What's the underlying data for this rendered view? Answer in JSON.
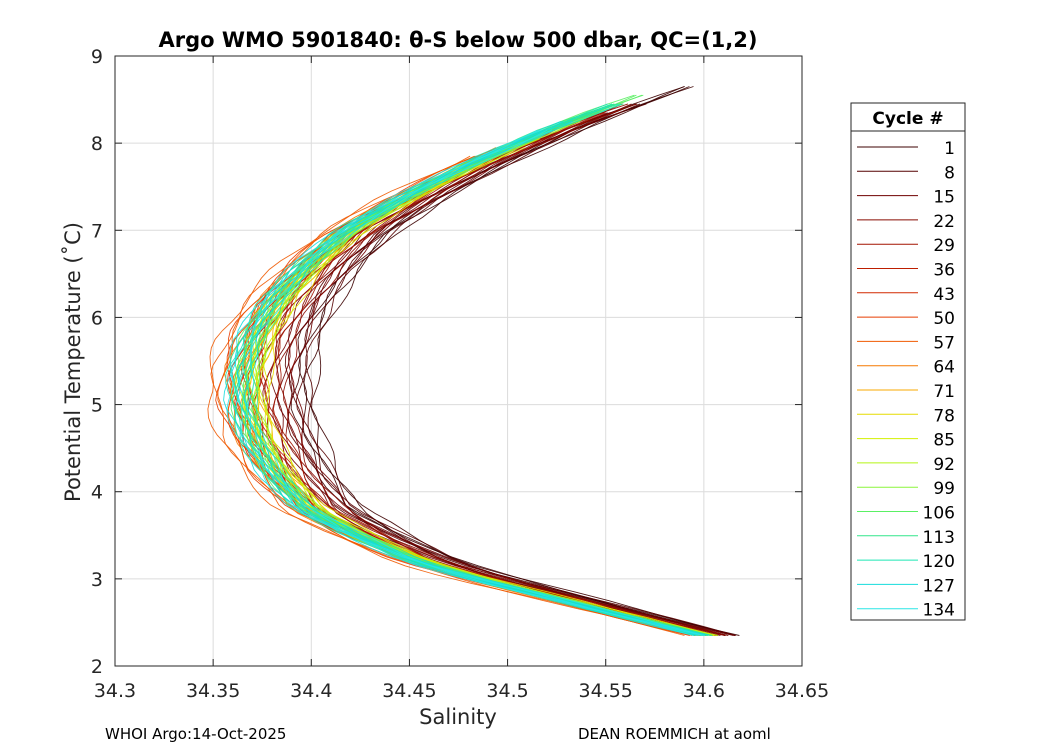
{
  "chart_data": {
    "type": "line",
    "title": "Argo WMO 5901840: θ-S below 500 dbar,  QC=(1,2)",
    "xlabel": "Salinity",
    "ylabel": "Potential Temperature (˚C)",
    "xlim": [
      34.3,
      34.65
    ],
    "ylim": [
      2,
      9
    ],
    "grid": true,
    "x_ticks": [
      34.3,
      34.35,
      34.4,
      34.45,
      34.5,
      34.55,
      34.6,
      34.65
    ],
    "x_tick_labels": [
      "34.3",
      "34.35",
      "34.4",
      "34.45",
      "34.5",
      "34.55",
      "34.6",
      "34.65"
    ],
    "y_ticks": [
      2,
      3,
      4,
      5,
      6,
      7,
      8,
      9
    ],
    "y_tick_labels": [
      "2",
      "3",
      "4",
      "5",
      "6",
      "7",
      "8",
      "9"
    ],
    "legend_title": "Cycle #",
    "legend_position": "outside-right",
    "legend_entries": [
      {
        "label": "1",
        "color": "#3c0000"
      },
      {
        "label": "8",
        "color": "#550000"
      },
      {
        "label": "15",
        "color": "#6f0000"
      },
      {
        "label": "22",
        "color": "#890a00"
      },
      {
        "label": "29",
        "color": "#a31400"
      },
      {
        "label": "36",
        "color": "#bd1e00"
      },
      {
        "label": "43",
        "color": "#d22800"
      },
      {
        "label": "50",
        "color": "#e63c00"
      },
      {
        "label": "57",
        "color": "#f05a00"
      },
      {
        "label": "64",
        "color": "#f57800"
      },
      {
        "label": "71",
        "color": "#faaa00"
      },
      {
        "label": "78",
        "color": "#e6dc00"
      },
      {
        "label": "85",
        "color": "#d2f000"
      },
      {
        "label": "92",
        "color": "#b4f514"
      },
      {
        "label": "99",
        "color": "#8cf53c"
      },
      {
        "label": "106",
        "color": "#5af064"
      },
      {
        "label": "113",
        "color": "#32e68c"
      },
      {
        "label": "120",
        "color": "#1ee6b4"
      },
      {
        "label": "127",
        "color": "#14dcdc"
      },
      {
        "label": "134",
        "color": "#28e6e6"
      }
    ],
    "typical_profile": {
      "theta": [
        2.35,
        2.6,
        2.8,
        3.0,
        3.2,
        3.5,
        3.8,
        4.2,
        4.6,
        5.0,
        5.4,
        5.8,
        6.2,
        6.6,
        7.0,
        7.4,
        7.8,
        8.2,
        8.5
      ],
      "salinity": [
        34.605,
        34.56,
        34.525,
        34.49,
        34.46,
        34.43,
        34.405,
        34.39,
        34.38,
        34.375,
        34.375,
        34.38,
        34.39,
        34.405,
        34.425,
        34.455,
        34.49,
        34.53,
        34.565
      ]
    },
    "series": [
      {
        "name": "1",
        "salinity_offset": 0.022,
        "top_theta": 8.7
      },
      {
        "name": "8",
        "salinity_offset": 0.018,
        "top_theta": 8.5
      },
      {
        "name": "15",
        "salinity_offset": 0.012,
        "top_theta": 8.4
      },
      {
        "name": "22",
        "salinity_offset": 0.008,
        "top_theta": 8.45
      },
      {
        "name": "29",
        "salinity_offset": 0.002,
        "top_theta": 8.35
      },
      {
        "name": "36",
        "salinity_offset": -0.004,
        "top_theta": 8.2
      },
      {
        "name": "43",
        "salinity_offset": -0.01,
        "top_theta": 8.1
      },
      {
        "name": "50",
        "salinity_offset": -0.016,
        "top_theta": 7.9
      },
      {
        "name": "57",
        "salinity_offset": -0.022,
        "top_theta": 7.85
      },
      {
        "name": "64",
        "salinity_offset": -0.012,
        "top_theta": 8.0
      },
      {
        "name": "71",
        "salinity_offset": -0.006,
        "top_theta": 8.15
      },
      {
        "name": "78",
        "salinity_offset": -0.002,
        "top_theta": 8.0
      },
      {
        "name": "85",
        "salinity_offset": -0.004,
        "top_theta": 8.1
      },
      {
        "name": "92",
        "salinity_offset": -0.006,
        "top_theta": 8.3
      },
      {
        "name": "99",
        "salinity_offset": -0.008,
        "top_theta": 8.4
      },
      {
        "name": "106",
        "salinity_offset": -0.009,
        "top_theta": 8.55
      },
      {
        "name": "113",
        "salinity_offset": -0.01,
        "top_theta": 8.5
      },
      {
        "name": "120",
        "salinity_offset": -0.011,
        "top_theta": 8.45
      },
      {
        "name": "127",
        "salinity_offset": -0.012,
        "top_theta": 8.3
      },
      {
        "name": "134",
        "salinity_offset": -0.012,
        "top_theta": 8.2
      }
    ]
  },
  "footer": {
    "left": "WHOI Argo:14-Oct-2025",
    "right": "DEAN ROEMMICH at aoml"
  }
}
